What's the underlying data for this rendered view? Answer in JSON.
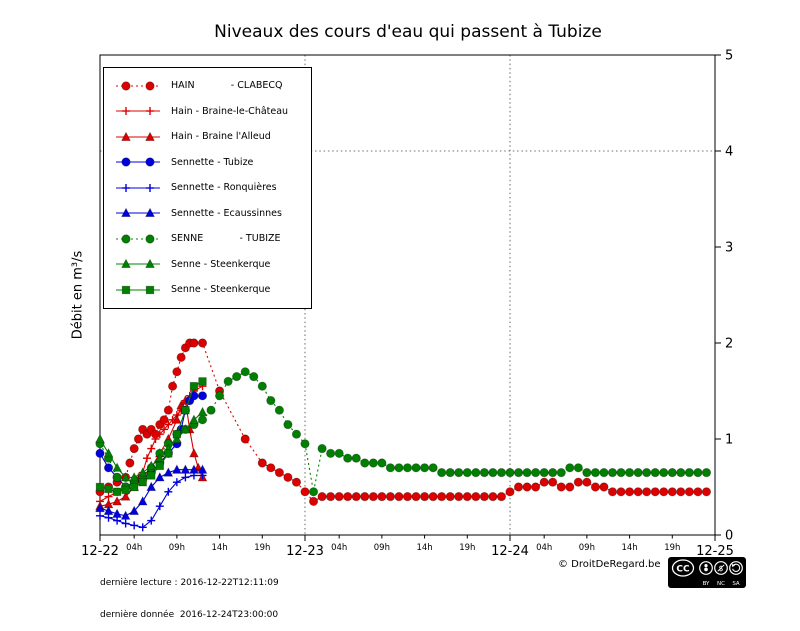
{
  "chart_data": {
    "type": "line",
    "title": "Niveaux des cours d'eau qui passent à Tubize",
    "ylabel": "Débit en m³/s",
    "xlabel": "",
    "ylim": [
      0,
      5
    ],
    "xlim": [
      0,
      72
    ],
    "yticks": [
      "0",
      "1",
      "2",
      "3",
      "4",
      "5"
    ],
    "x_unit": "hours after 2016-12-22 00:00",
    "x_major_ticks": [
      {
        "hour": 0,
        "label": "12-22"
      },
      {
        "hour": 24,
        "label": "12-23"
      },
      {
        "hour": 48,
        "label": "12-24"
      },
      {
        "hour": 72,
        "label": "12-25"
      }
    ],
    "x_minor_ticks": [
      {
        "hour": 4,
        "label": "04h"
      },
      {
        "hour": 9,
        "label": "09h"
      },
      {
        "hour": 14,
        "label": "14h"
      },
      {
        "hour": 19,
        "label": "19h"
      },
      {
        "hour": 28,
        "label": "04h"
      },
      {
        "hour": 33,
        "label": "09h"
      },
      {
        "hour": 38,
        "label": "14h"
      },
      {
        "hour": 43,
        "label": "19h"
      },
      {
        "hour": 52,
        "label": "04h"
      },
      {
        "hour": 57,
        "label": "09h"
      },
      {
        "hour": 62,
        "label": "14h"
      },
      {
        "hour": 67,
        "label": "19h"
      }
    ],
    "grid": {
      "vertical_dotted_hours": [
        24,
        48
      ],
      "horizontal_dotted_values": [
        4
      ]
    },
    "legend_position": "upper left",
    "series": [
      {
        "name": "HAIN            - CLABECQ",
        "color": "#dd0000",
        "marker": "circle",
        "line": "dotted",
        "points": [
          [
            0,
            0.45
          ],
          [
            1,
            0.5
          ],
          [
            2,
            0.55
          ],
          [
            3,
            0.6
          ],
          [
            3.5,
            0.75
          ],
          [
            4,
            0.9
          ],
          [
            4.5,
            1.0
          ],
          [
            5,
            1.1
          ],
          [
            5.5,
            1.05
          ],
          [
            6,
            1.1
          ],
          [
            6.5,
            1.05
          ],
          [
            7,
            1.15
          ],
          [
            7.5,
            1.2
          ],
          [
            8,
            1.3
          ],
          [
            8.5,
            1.55
          ],
          [
            9,
            1.7
          ],
          [
            9.5,
            1.85
          ],
          [
            10,
            1.95
          ],
          [
            10.5,
            2.0
          ],
          [
            11,
            2.0
          ],
          [
            12,
            2.0
          ],
          [
            14,
            1.5
          ],
          [
            17,
            1.0
          ],
          [
            19,
            0.75
          ],
          [
            20,
            0.7
          ],
          [
            21,
            0.65
          ],
          [
            22,
            0.6
          ],
          [
            23,
            0.55
          ],
          [
            24,
            0.45
          ],
          [
            25,
            0.35
          ],
          [
            26,
            0.4
          ],
          [
            27,
            0.4
          ],
          [
            28,
            0.4
          ],
          [
            29,
            0.4
          ],
          [
            30,
            0.4
          ],
          [
            31,
            0.4
          ],
          [
            32,
            0.4
          ],
          [
            33,
            0.4
          ],
          [
            34,
            0.4
          ],
          [
            35,
            0.4
          ],
          [
            36,
            0.4
          ],
          [
            37,
            0.4
          ],
          [
            38,
            0.4
          ],
          [
            39,
            0.4
          ],
          [
            40,
            0.4
          ],
          [
            41,
            0.4
          ],
          [
            42,
            0.4
          ],
          [
            43,
            0.4
          ],
          [
            44,
            0.4
          ],
          [
            45,
            0.4
          ],
          [
            46,
            0.4
          ],
          [
            47,
            0.4
          ],
          [
            48,
            0.45
          ],
          [
            49,
            0.5
          ],
          [
            50,
            0.5
          ],
          [
            51,
            0.5
          ],
          [
            52,
            0.55
          ],
          [
            53,
            0.55
          ],
          [
            54,
            0.5
          ],
          [
            55,
            0.5
          ],
          [
            56,
            0.55
          ],
          [
            57,
            0.55
          ],
          [
            58,
            0.5
          ],
          [
            59,
            0.5
          ],
          [
            60,
            0.45
          ],
          [
            61,
            0.45
          ],
          [
            62,
            0.45
          ],
          [
            63,
            0.45
          ],
          [
            64,
            0.45
          ],
          [
            65,
            0.45
          ],
          [
            66,
            0.45
          ],
          [
            67,
            0.45
          ],
          [
            68,
            0.45
          ],
          [
            69,
            0.45
          ],
          [
            70,
            0.45
          ],
          [
            71,
            0.45
          ]
        ]
      },
      {
        "name": "Hain - Braine-le-Château",
        "color": "#dd0000",
        "marker": "plus",
        "line": "solid",
        "points": [
          [
            0,
            0.35
          ],
          [
            1,
            0.4
          ],
          [
            2,
            0.45
          ],
          [
            3,
            0.5
          ],
          [
            4,
            0.55
          ],
          [
            4.5,
            0.6
          ],
          [
            5,
            0.65
          ],
          [
            5.5,
            0.8
          ],
          [
            6,
            0.9
          ],
          [
            6.5,
            1.0
          ],
          [
            7,
            1.05
          ],
          [
            7.5,
            1.1
          ],
          [
            8,
            1.15
          ],
          [
            8.5,
            1.2
          ],
          [
            9,
            1.25
          ],
          [
            9.5,
            1.3
          ],
          [
            10,
            1.4
          ],
          [
            10.5,
            1.45
          ],
          [
            11,
            1.5
          ],
          [
            12,
            1.55
          ]
        ]
      },
      {
        "name": "Hain - Braine l'Alleud",
        "color": "#dd0000",
        "marker": "triangle",
        "line": "solid",
        "points": [
          [
            0,
            0.3
          ],
          [
            1,
            0.32
          ],
          [
            2,
            0.35
          ],
          [
            3,
            0.4
          ],
          [
            4,
            0.5
          ],
          [
            5,
            0.6
          ],
          [
            6,
            0.7
          ],
          [
            7,
            0.85
          ],
          [
            8,
            1.0
          ],
          [
            9,
            1.2
          ],
          [
            9.5,
            1.35
          ],
          [
            10,
            1.4
          ],
          [
            10.5,
            1.1
          ],
          [
            11,
            0.85
          ],
          [
            11.5,
            0.7
          ],
          [
            12,
            0.6
          ]
        ]
      },
      {
        "name": "Sennette - Tubize",
        "color": "#0000dd",
        "marker": "circle",
        "line": "solid",
        "points": [
          [
            0,
            0.85
          ],
          [
            1,
            0.7
          ],
          [
            2,
            0.6
          ],
          [
            3,
            0.5
          ],
          [
            4,
            0.55
          ],
          [
            5,
            0.6
          ],
          [
            6,
            0.65
          ],
          [
            7,
            0.75
          ],
          [
            8,
            0.85
          ],
          [
            9,
            0.95
          ],
          [
            9.5,
            1.1
          ],
          [
            10,
            1.3
          ],
          [
            10.5,
            1.4
          ],
          [
            11,
            1.45
          ],
          [
            12,
            1.45
          ]
        ]
      },
      {
        "name": "Sennette - Ronquières",
        "color": "#0000dd",
        "marker": "plus",
        "line": "solid",
        "points": [
          [
            0,
            0.2
          ],
          [
            1,
            0.18
          ],
          [
            2,
            0.15
          ],
          [
            3,
            0.12
          ],
          [
            4,
            0.1
          ],
          [
            5,
            0.08
          ],
          [
            6,
            0.15
          ],
          [
            7,
            0.3
          ],
          [
            8,
            0.45
          ],
          [
            9,
            0.55
          ],
          [
            10,
            0.6
          ],
          [
            11,
            0.62
          ],
          [
            12,
            0.62
          ]
        ]
      },
      {
        "name": "Sennette - Ecaussinnes",
        "color": "#0000dd",
        "marker": "triangle",
        "line": "solid",
        "points": [
          [
            0,
            0.28
          ],
          [
            1,
            0.25
          ],
          [
            2,
            0.22
          ],
          [
            3,
            0.2
          ],
          [
            4,
            0.25
          ],
          [
            5,
            0.35
          ],
          [
            6,
            0.5
          ],
          [
            7,
            0.6
          ],
          [
            8,
            0.65
          ],
          [
            9,
            0.68
          ],
          [
            10,
            0.68
          ],
          [
            11,
            0.68
          ],
          [
            12,
            0.68
          ]
        ]
      },
      {
        "name": "SENNE            - TUBIZE",
        "color": "#008000",
        "marker": "circle",
        "line": "dotted",
        "points": [
          [
            0,
            0.95
          ],
          [
            1,
            0.8
          ],
          [
            2,
            0.6
          ],
          [
            3,
            0.5
          ],
          [
            4,
            0.55
          ],
          [
            5,
            0.6
          ],
          [
            6,
            0.7
          ],
          [
            7,
            0.85
          ],
          [
            8,
            0.95
          ],
          [
            9,
            1.05
          ],
          [
            10,
            1.1
          ],
          [
            11,
            1.15
          ],
          [
            12,
            1.2
          ],
          [
            13,
            1.3
          ],
          [
            14,
            1.45
          ],
          [
            15,
            1.6
          ],
          [
            16,
            1.65
          ],
          [
            17,
            1.7
          ],
          [
            18,
            1.65
          ],
          [
            19,
            1.55
          ],
          [
            20,
            1.4
          ],
          [
            21,
            1.3
          ],
          [
            22,
            1.15
          ],
          [
            23,
            1.05
          ],
          [
            24,
            0.95
          ],
          [
            25,
            0.45
          ],
          [
            26,
            0.9
          ],
          [
            27,
            0.85
          ],
          [
            28,
            0.85
          ],
          [
            29,
            0.8
          ],
          [
            30,
            0.8
          ],
          [
            31,
            0.75
          ],
          [
            32,
            0.75
          ],
          [
            33,
            0.75
          ],
          [
            34,
            0.7
          ],
          [
            35,
            0.7
          ],
          [
            36,
            0.7
          ],
          [
            37,
            0.7
          ],
          [
            38,
            0.7
          ],
          [
            39,
            0.7
          ],
          [
            40,
            0.65
          ],
          [
            41,
            0.65
          ],
          [
            42,
            0.65
          ],
          [
            43,
            0.65
          ],
          [
            44,
            0.65
          ],
          [
            45,
            0.65
          ],
          [
            46,
            0.65
          ],
          [
            47,
            0.65
          ],
          [
            48,
            0.65
          ],
          [
            49,
            0.65
          ],
          [
            50,
            0.65
          ],
          [
            51,
            0.65
          ],
          [
            52,
            0.65
          ],
          [
            53,
            0.65
          ],
          [
            54,
            0.65
          ],
          [
            55,
            0.7
          ],
          [
            56,
            0.7
          ],
          [
            57,
            0.65
          ],
          [
            58,
            0.65
          ],
          [
            59,
            0.65
          ],
          [
            60,
            0.65
          ],
          [
            61,
            0.65
          ],
          [
            62,
            0.65
          ],
          [
            63,
            0.65
          ],
          [
            64,
            0.65
          ],
          [
            65,
            0.65
          ],
          [
            66,
            0.65
          ],
          [
            67,
            0.65
          ],
          [
            68,
            0.65
          ],
          [
            69,
            0.65
          ],
          [
            70,
            0.65
          ],
          [
            71,
            0.65
          ]
        ]
      },
      {
        "name": "Senne - Steenkerque",
        "color": "#008000",
        "marker": "triangle",
        "line": "solid",
        "points": [
          [
            0,
            1.0
          ],
          [
            1,
            0.85
          ],
          [
            2,
            0.7
          ],
          [
            3,
            0.6
          ],
          [
            4,
            0.6
          ],
          [
            5,
            0.65
          ],
          [
            6,
            0.72
          ],
          [
            7,
            0.8
          ],
          [
            8,
            0.9
          ],
          [
            9,
            1.0
          ],
          [
            10,
            1.1
          ],
          [
            11,
            1.2
          ],
          [
            12,
            1.28
          ]
        ]
      },
      {
        "name": "Senne - Steenkerque",
        "color": "#008000",
        "marker": "square",
        "line": "solid",
        "points": [
          [
            0,
            0.5
          ],
          [
            1,
            0.48
          ],
          [
            2,
            0.45
          ],
          [
            3,
            0.47
          ],
          [
            4,
            0.5
          ],
          [
            5,
            0.55
          ],
          [
            6,
            0.62
          ],
          [
            7,
            0.72
          ],
          [
            8,
            0.85
          ],
          [
            9,
            1.05
          ],
          [
            10,
            1.3
          ],
          [
            11,
            1.55
          ],
          [
            12,
            1.6
          ]
        ]
      }
    ]
  },
  "footer": {
    "last_reading": "dernière lecture : 2016-12-22T12:11:09",
    "last_data": "dernière donnée  2016-12-24T23:00:00",
    "copyright": "© DroitDeRegard.be",
    "license": {
      "cc_label": "CC",
      "terms": [
        "BY",
        "NC",
        "SA"
      ]
    }
  }
}
